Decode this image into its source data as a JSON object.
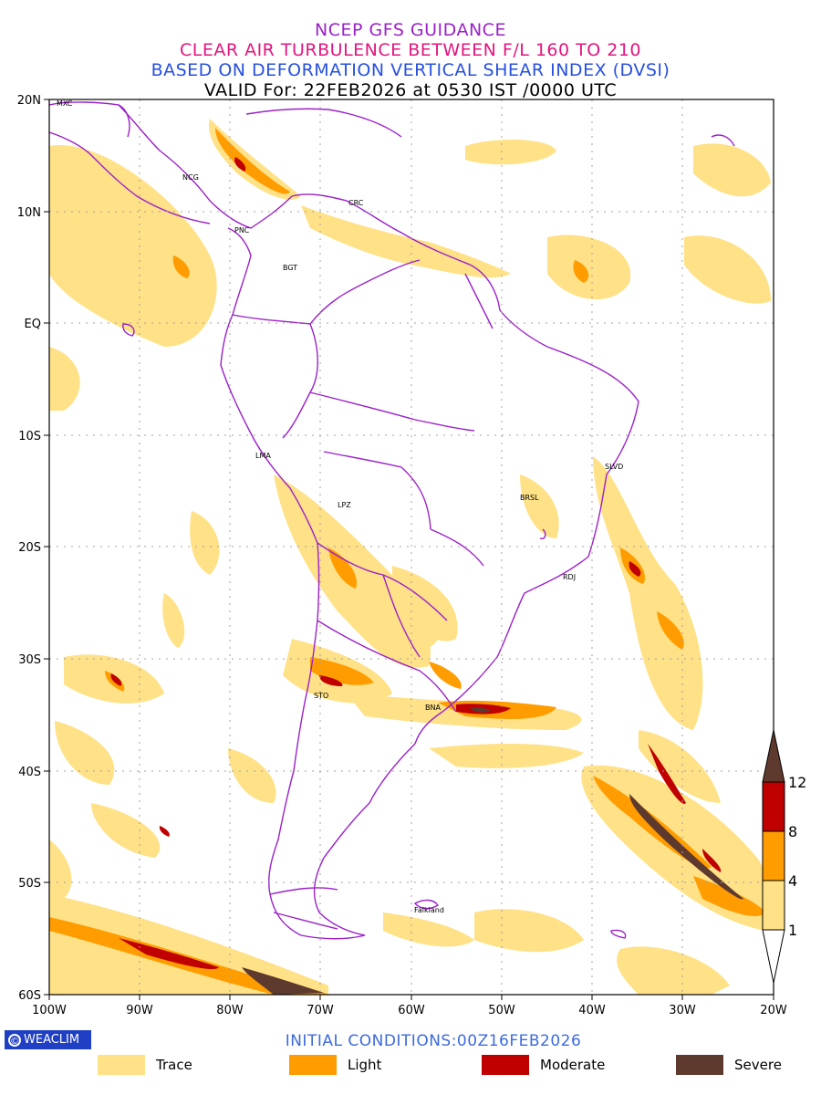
{
  "titles": {
    "line1": "NCEP GFS GUIDANCE",
    "line2": "CLEAR AIR TURBULENCE BETWEEN F/L 160 TO 210",
    "line3": "BASED ON DEFORMATION VERTICAL SHEAR INDEX (DVSI)",
    "line4": "VALID For: 22FEB2026 at 0530 IST /0000 UTC"
  },
  "axes": {
    "lat_labels": [
      "20N",
      "10N",
      "EQ",
      "10S",
      "20S",
      "30S",
      "40S",
      "50S",
      "60S"
    ],
    "lon_labels": [
      "100W",
      "90W",
      "80W",
      "70W",
      "60W",
      "50W",
      "40W",
      "30W",
      "20W"
    ]
  },
  "cities": [
    {
      "name": "MXC"
    },
    {
      "name": "NCG"
    },
    {
      "name": "CRC"
    },
    {
      "name": "PNC"
    },
    {
      "name": "BGT"
    },
    {
      "name": "LMA"
    },
    {
      "name": "SLVD"
    },
    {
      "name": "BRSL"
    },
    {
      "name": "LPZ"
    },
    {
      "name": "RDJ"
    },
    {
      "name": "STO"
    },
    {
      "name": "BNA"
    },
    {
      "name": "Falkland"
    }
  ],
  "colorbar": {
    "ticks": [
      "12",
      "8",
      "4",
      "1"
    ],
    "colors": {
      "severe": "#5e3a2e",
      "moderate": "#c00000",
      "light": "#ff9c00",
      "trace": "#ffe187"
    }
  },
  "footer": {
    "badge": "WEACLIM",
    "initial_conditions": "INITIAL CONDITIONS:00Z16FEB2026"
  },
  "legend": [
    {
      "label": "Trace",
      "color": "#ffe187"
    },
    {
      "label": "Light",
      "color": "#ff9c00"
    },
    {
      "label": "Moderate",
      "color": "#c00000"
    },
    {
      "label": "Severe",
      "color": "#5e3a2e"
    }
  ]
}
